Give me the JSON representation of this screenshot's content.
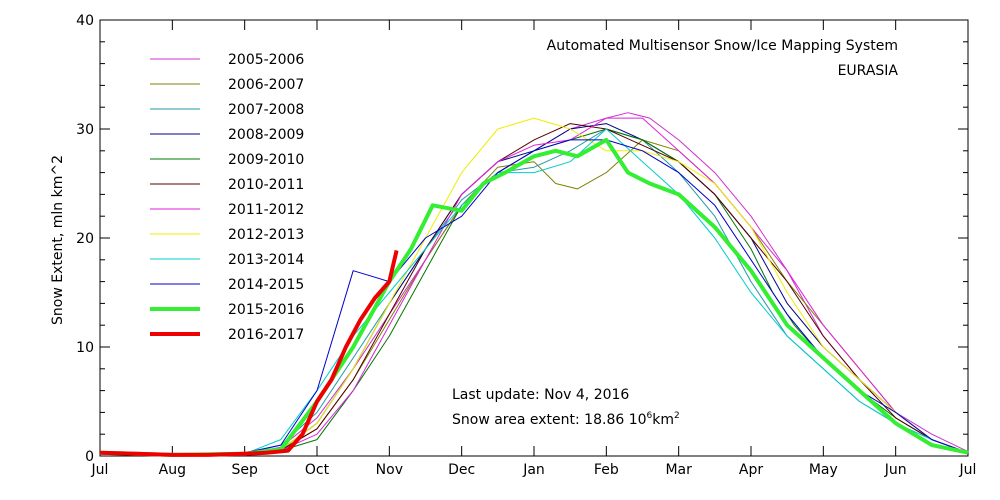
{
  "chart_data": {
    "type": "line",
    "title": "Automated  Multisensor Snow/Ice Mapping System",
    "subtitle": "EURASIA",
    "ylabel": "Snow Extent, mln km^2",
    "xlabel": "",
    "ylim": [
      0,
      40
    ],
    "xlim": [
      0,
      12
    ],
    "yticks": [
      0,
      10,
      20,
      30,
      40
    ],
    "x_tick_labels": [
      "Jul",
      "Aug",
      "Sep",
      "Oct",
      "Nov",
      "Dec",
      "Jan",
      "Feb",
      "Mar",
      "Apr",
      "May",
      "Jun",
      "Jul"
    ],
    "grid": false,
    "legend_position": "top-left",
    "annotations": {
      "last_update": "Last update: Nov  4, 2016",
      "extent_prefix": "Snow area extent: 18.86 10",
      "extent_exp": "6",
      "extent_unit": "km",
      "extent_unit_exp": "2"
    },
    "series": [
      {
        "name": "2005-2006",
        "color": "#cc33cc",
        "bold": false,
        "x": [
          0,
          1,
          2,
          2.5,
          3,
          3.5,
          4,
          4.5,
          5,
          5.5,
          6,
          6.5,
          7,
          7.3,
          7.6,
          8,
          8.5,
          9,
          9.5,
          10,
          10.5,
          11,
          11.5,
          12
        ],
        "y": [
          0.3,
          0.1,
          0.2,
          0.8,
          3.5,
          8,
          13,
          18,
          23,
          26,
          28,
          30,
          31,
          31.5,
          31,
          29,
          26,
          22,
          17,
          11,
          7,
          4,
          2,
          0.4
        ]
      },
      {
        "name": "2006-2007",
        "color": "#808000",
        "bold": false,
        "x": [
          0,
          1,
          2,
          2.5,
          3,
          3.5,
          4,
          4.5,
          5,
          5.5,
          6,
          6.3,
          6.6,
          7,
          7.5,
          8,
          8.5,
          9,
          9.5,
          10,
          10.5,
          11,
          11.5,
          12
        ],
        "y": [
          0.3,
          0.1,
          0.2,
          0.6,
          2.5,
          7,
          12.5,
          18,
          23,
          26.5,
          27,
          25,
          24.5,
          26,
          29,
          28,
          25,
          21,
          16,
          12,
          8,
          4,
          1.5,
          0.3
        ]
      },
      {
        "name": "2007-2008",
        "color": "#2299aa",
        "bold": false,
        "x": [
          0,
          1,
          2,
          2.5,
          3,
          3.5,
          4,
          4.5,
          5,
          5.5,
          6,
          6.5,
          7,
          7.5,
          8,
          8.5,
          9,
          9.5,
          10,
          10.5,
          11,
          11.5,
          12
        ],
        "y": [
          0.3,
          0.1,
          0.2,
          1,
          4,
          9,
          14,
          19,
          23.5,
          26,
          26.5,
          28,
          30,
          29,
          26,
          22,
          16,
          11,
          8,
          5,
          3,
          1.5,
          0.3
        ]
      },
      {
        "name": "2008-2009",
        "color": "#000088",
        "bold": false,
        "x": [
          0,
          1,
          2,
          2.5,
          3,
          3.5,
          4,
          4.5,
          5,
          5.5,
          6,
          6.5,
          7,
          7.5,
          8,
          8.5,
          9,
          9.5,
          10,
          10.5,
          11,
          11.5,
          12
        ],
        "y": [
          0.3,
          0.1,
          0.2,
          0.6,
          3,
          8,
          14,
          19,
          24,
          27,
          28,
          30,
          30.5,
          29,
          27,
          24,
          20,
          14,
          10,
          7,
          4,
          1.5,
          0.3
        ]
      },
      {
        "name": "2009-2010",
        "color": "#007700",
        "bold": false,
        "x": [
          0,
          1,
          2,
          2.5,
          3,
          3.5,
          4,
          4.5,
          5,
          5.5,
          6,
          6.5,
          7,
          7.5,
          8,
          8.5,
          9,
          9.3,
          9.6,
          10,
          10.5,
          11,
          11.5,
          12
        ],
        "y": [
          0.3,
          0.1,
          0.2,
          0.5,
          1.5,
          6,
          11,
          17,
          23,
          26,
          28,
          29,
          30,
          29,
          27,
          24,
          19,
          15,
          12,
          9,
          6,
          3.5,
          1.5,
          0.3
        ]
      },
      {
        "name": "2010-2011",
        "color": "#550000",
        "bold": false,
        "x": [
          0,
          1,
          2,
          2.5,
          3,
          3.5,
          4,
          4.5,
          5,
          5.5,
          6,
          6.5,
          7,
          7.5,
          8,
          8.5,
          9,
          9.5,
          10,
          10.5,
          11,
          11.5,
          12
        ],
        "y": [
          0.3,
          0.1,
          0.2,
          0.5,
          2.5,
          7,
          13,
          19,
          24,
          27,
          29,
          30.5,
          30,
          28.5,
          27,
          24,
          20,
          16,
          11,
          7,
          3.5,
          1.5,
          0.3
        ]
      },
      {
        "name": "2011-2012",
        "color": "#dd22dd",
        "bold": false,
        "x": [
          0,
          1,
          2,
          2.5,
          3,
          3.5,
          4,
          4.5,
          5,
          5.5,
          6,
          6.5,
          7,
          7.5,
          8,
          8.5,
          9,
          9.5,
          10,
          10.5,
          11,
          11.5,
          12
        ],
        "y": [
          0.3,
          0.1,
          0.2,
          0.5,
          2,
          6,
          12,
          18,
          24,
          27,
          28.5,
          29,
          31,
          31,
          28,
          25,
          21,
          17,
          12,
          8,
          4,
          1.5,
          0.3
        ]
      },
      {
        "name": "2012-2013",
        "color": "#eeee00",
        "bold": false,
        "x": [
          0,
          1,
          2,
          2.5,
          3,
          3.5,
          4,
          4.5,
          5,
          5.5,
          6,
          6.5,
          7,
          7.5,
          8,
          8.5,
          9,
          9.5,
          10,
          10.5,
          11,
          11.5,
          12
        ],
        "y": [
          0.3,
          0.1,
          0.2,
          0.6,
          3,
          8,
          14,
          20,
          26,
          30,
          31,
          30,
          28,
          28,
          27,
          25,
          21,
          15,
          10,
          7,
          4,
          1.5,
          0.3
        ]
      },
      {
        "name": "2013-2014",
        "color": "#00cccc",
        "bold": false,
        "x": [
          0,
          1,
          2,
          2.5,
          3,
          3.5,
          4,
          4.5,
          5,
          5.5,
          6,
          6.5,
          7,
          7.5,
          8,
          8.5,
          9,
          9.5,
          10,
          10.5,
          11,
          11.5,
          12
        ],
        "y": [
          0.3,
          0.1,
          0.2,
          1.5,
          6,
          11,
          15,
          19,
          23,
          26,
          26,
          27,
          30,
          27,
          24,
          20,
          15,
          11,
          8,
          5,
          3,
          1.5,
          0.3
        ]
      },
      {
        "name": "2014-2015",
        "color": "#0000cc",
        "bold": false,
        "x": [
          0,
          1,
          2,
          2.5,
          3,
          3.5,
          4,
          4.5,
          5,
          5.5,
          6,
          6.5,
          7,
          7.5,
          8,
          8.5,
          9,
          9.5,
          10,
          10.5,
          11,
          11.5,
          12
        ],
        "y": [
          0.3,
          0.1,
          0.3,
          1,
          6,
          17,
          16,
          20,
          22,
          26,
          28,
          29,
          29,
          28,
          26,
          23,
          18,
          13,
          9,
          6,
          4,
          1.5,
          0.3
        ]
      },
      {
        "name": "2015-2016",
        "color": "#33ee33",
        "bold": true,
        "x": [
          0,
          1,
          2,
          2.5,
          3,
          3.5,
          4,
          4.3,
          4.6,
          5,
          5.3,
          5.6,
          6,
          6.3,
          6.6,
          7,
          7.3,
          7.6,
          8,
          8.5,
          9,
          9.5,
          10,
          10.5,
          11,
          11.5,
          12
        ],
        "y": [
          0.3,
          0.1,
          0.2,
          0.6,
          5,
          10,
          16,
          19,
          23,
          22.5,
          25,
          26,
          27.5,
          28,
          27.5,
          29,
          26,
          25,
          24,
          21,
          17,
          12,
          9,
          6,
          3,
          1,
          0.3
        ]
      },
      {
        "name": "2016-2017",
        "color": "#ee0000",
        "bold": true,
        "x": [
          0,
          0.5,
          1,
          1.5,
          2,
          2.3,
          2.6,
          2.8,
          3,
          3.2,
          3.4,
          3.6,
          3.8,
          4,
          4.1
        ],
        "y": [
          0.3,
          0.2,
          0.1,
          0.1,
          0.2,
          0.3,
          0.5,
          2,
          5,
          7,
          10,
          12.5,
          14.5,
          16,
          18.86
        ]
      }
    ]
  }
}
